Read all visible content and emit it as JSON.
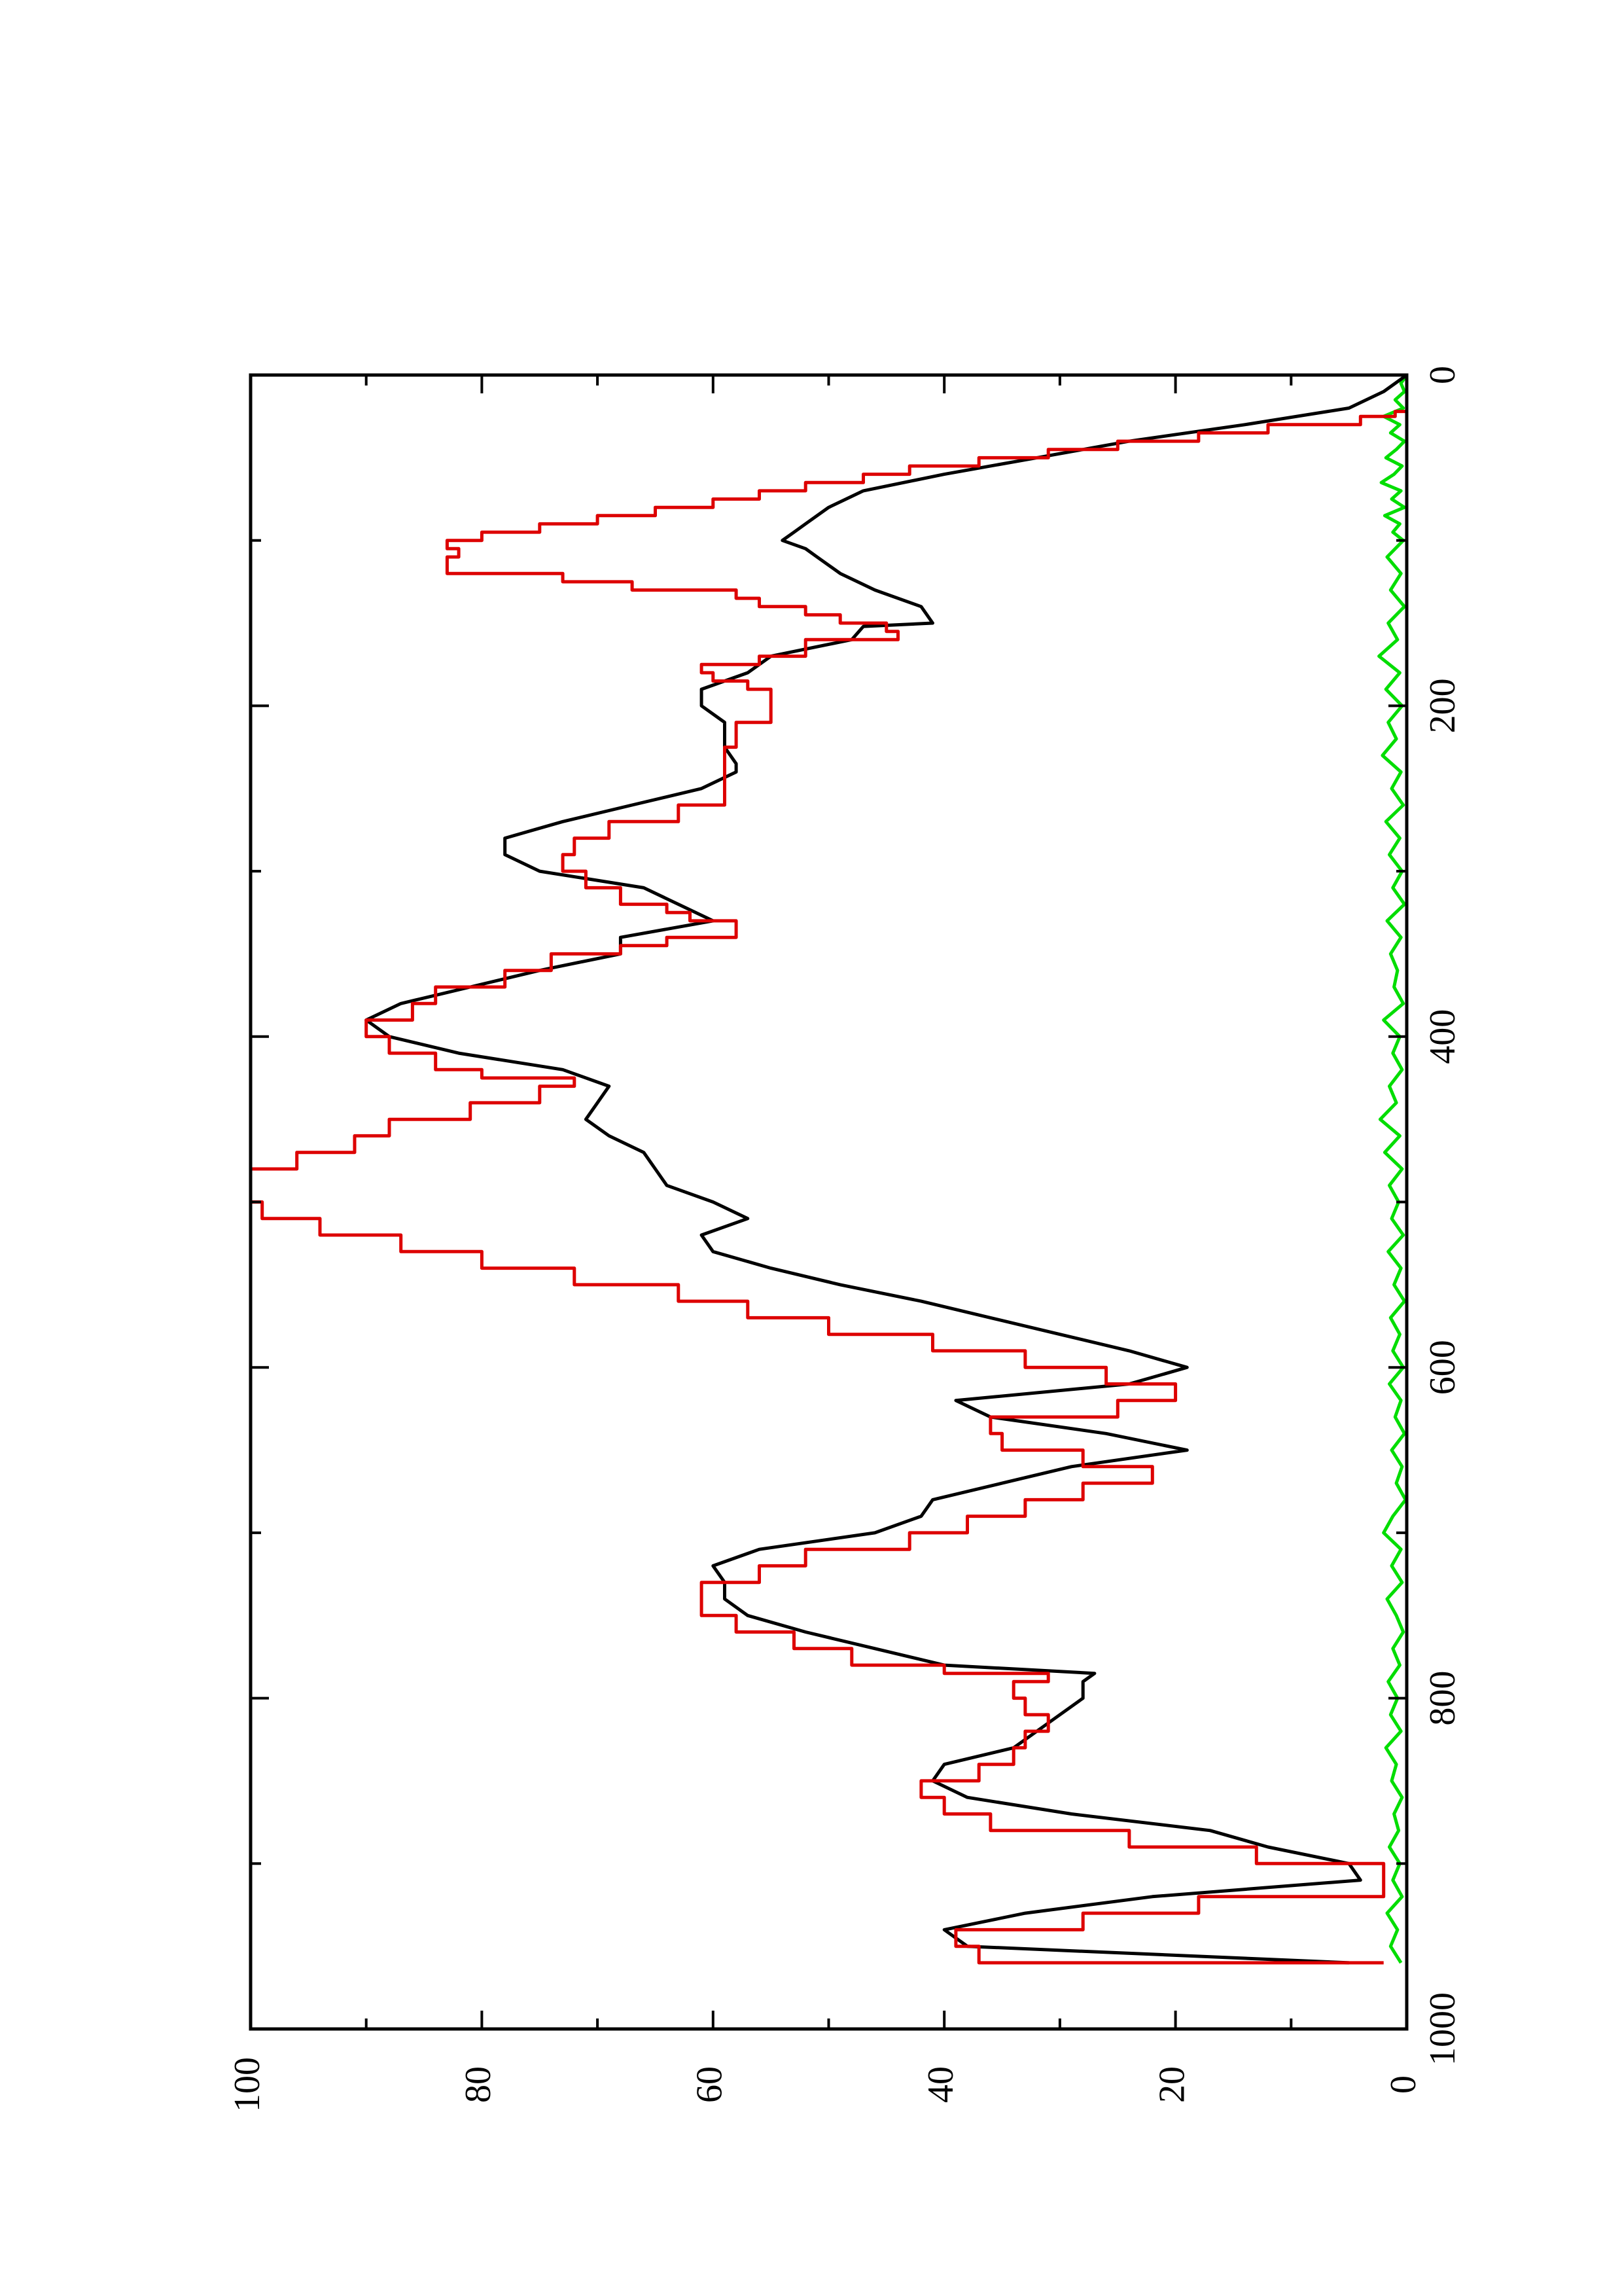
{
  "chart_data": {
    "type": "line",
    "title": "",
    "xlabel": "",
    "ylabel": "",
    "orientation": "rotated-90-ccw",
    "xlim": [
      0,
      1000
    ],
    "ylim": [
      0,
      100
    ],
    "x_ticks": [
      0,
      200,
      400,
      600,
      800,
      1000
    ],
    "y_ticks": [
      0,
      20,
      40,
      60,
      80,
      100
    ],
    "grid": false,
    "legend": "none",
    "colors": {
      "axis": "#000000",
      "black_series": "#000000",
      "red_series": "#dd0000",
      "green_series": "#00dd00"
    },
    "series": [
      {
        "key": "black",
        "color": "#000000",
        "x": [
          0,
          10,
          20,
          30,
          40,
          50,
          60,
          70,
          80,
          90,
          95,
          100,
          105,
          110,
          120,
          130,
          140,
          150,
          152,
          160,
          170,
          180,
          190,
          200,
          210,
          220,
          225,
          235,
          240,
          250,
          260,
          270,
          280,
          290,
          300,
          310,
          320,
          330,
          340,
          350,
          360,
          370,
          380,
          390,
          400,
          410,
          420,
          430,
          440,
          450,
          460,
          470,
          480,
          490,
          500,
          510,
          520,
          530,
          540,
          550,
          560,
          570,
          580,
          590,
          600,
          610,
          620,
          630,
          640,
          650,
          660,
          670,
          680,
          690,
          700,
          710,
          720,
          730,
          740,
          750,
          760,
          770,
          780,
          785,
          790,
          800,
          810,
          820,
          830,
          840,
          850,
          860,
          870,
          880,
          890,
          900,
          910,
          920,
          930,
          940,
          950,
          960
        ],
        "y": [
          0,
          2,
          5,
          14,
          24,
          32,
          40,
          47,
          50,
          52,
          53,
          54,
          52,
          51,
          49,
          46,
          42,
          41,
          47,
          48,
          55,
          57,
          61,
          61,
          59,
          59,
          59,
          58,
          58,
          61,
          67,
          73,
          78,
          78,
          75,
          66,
          63,
          60,
          68,
          68,
          75,
          81,
          87,
          90,
          88,
          82,
          73,
          69,
          70,
          71,
          69,
          66,
          65,
          64,
          60,
          57,
          61,
          60,
          55,
          49,
          42,
          36,
          30,
          24,
          19,
          24,
          39,
          36,
          26,
          19,
          29,
          35,
          41,
          42,
          46,
          56,
          60,
          59,
          59,
          57,
          52,
          46,
          40,
          27,
          28,
          28,
          30,
          32,
          34,
          40,
          41,
          38,
          29,
          17,
          12,
          5,
          4,
          22,
          33,
          40,
          38,
          5
        ]
      },
      {
        "key": "red",
        "color": "#dd0000",
        "step": true,
        "x": [
          0,
          22,
          25,
          30,
          35,
          40,
          45,
          50,
          55,
          60,
          65,
          70,
          75,
          80,
          85,
          90,
          95,
          100,
          105,
          110,
          120,
          125,
          130,
          135,
          140,
          145,
          150,
          155,
          160,
          165,
          170,
          175,
          180,
          185,
          190,
          200,
          210,
          220,
          225,
          230,
          240,
          250,
          260,
          270,
          280,
          290,
          300,
          310,
          320,
          325,
          330,
          340,
          345,
          350,
          360,
          370,
          380,
          390,
          400,
          410,
          420,
          425,
          430,
          440,
          450,
          460,
          470,
          480,
          490,
          500,
          510,
          520,
          530,
          540,
          550,
          560,
          570,
          580,
          590,
          600,
          610,
          620,
          630,
          640,
          650,
          660,
          670,
          680,
          690,
          700,
          710,
          720,
          730,
          740,
          750,
          760,
          770,
          780,
          785,
          790,
          800,
          810,
          820,
          830,
          840,
          850,
          860,
          870,
          880,
          890,
          900,
          910,
          920,
          930,
          940,
          950,
          960
        ],
        "y": [
          0,
          1,
          4,
          12,
          18,
          25,
          31,
          37,
          43,
          47,
          52,
          56,
          60,
          65,
          70,
          75,
          80,
          83,
          82,
          83,
          73,
          67,
          58,
          56,
          52,
          49,
          45,
          44,
          52,
          52,
          56,
          61,
          60,
          57,
          55,
          55,
          58,
          58,
          59,
          59,
          59,
          59,
          63,
          69,
          72,
          73,
          71,
          68,
          64,
          62,
          58,
          64,
          68,
          74,
          78,
          84,
          86,
          90,
          88,
          84,
          80,
          72,
          75,
          81,
          88,
          91,
          96,
          100,
          100,
          99,
          94,
          87,
          80,
          72,
          63,
          57,
          50,
          41,
          33,
          26,
          20,
          25,
          36,
          35,
          28,
          22,
          28,
          33,
          38,
          43,
          52,
          56,
          61,
          61,
          58,
          53,
          48,
          40,
          31,
          34,
          33,
          31,
          33,
          34,
          37,
          42,
          40,
          36,
          24,
          13,
          2,
          2,
          18,
          28,
          39,
          37,
          2
        ]
      },
      {
        "key": "green",
        "color": "#00dd00",
        "x": [
          0,
          5,
          10,
          15,
          20,
          25,
          30,
          35,
          40,
          45,
          50,
          55,
          60,
          65,
          70,
          75,
          80,
          85,
          90,
          95,
          100,
          110,
          120,
          130,
          140,
          150,
          160,
          170,
          180,
          190,
          200,
          210,
          220,
          230,
          240,
          250,
          260,
          270,
          280,
          290,
          300,
          310,
          320,
          330,
          340,
          350,
          360,
          370,
          380,
          390,
          400,
          410,
          420,
          430,
          440,
          450,
          460,
          470,
          480,
          490,
          500,
          510,
          520,
          530,
          540,
          550,
          560,
          570,
          580,
          590,
          600,
          610,
          620,
          630,
          640,
          650,
          660,
          670,
          680,
          690,
          700,
          710,
          720,
          730,
          740,
          750,
          760,
          770,
          780,
          790,
          800,
          810,
          820,
          830,
          840,
          850,
          860,
          870,
          880,
          890,
          900,
          910,
          920,
          930,
          940,
          950,
          960
        ],
        "y": [
          0,
          0.5,
          0.2,
          1,
          0.3,
          2,
          0.6,
          1.4,
          0.2,
          0.9,
          1.8,
          0.4,
          1.1,
          2.2,
          0.5,
          1.3,
          0.2,
          1.9,
          0.6,
          1.2,
          0.3,
          1.7,
          0.5,
          1.4,
          0.2,
          1.6,
          0.8,
          2.4,
          0.6,
          1.8,
          0.4,
          1.6,
          0.9,
          2.1,
          0.5,
          1.3,
          0.3,
          1.8,
          0.6,
          1.5,
          0.4,
          1.2,
          0.2,
          1.7,
          0.5,
          1.4,
          0.8,
          1.1,
          0.3,
          2.0,
          0.6,
          1.2,
          0.4,
          1.5,
          0.9,
          2.3,
          0.6,
          1.9,
          0.4,
          1.5,
          0.7,
          1.3,
          0.3,
          1.6,
          0.5,
          1.1,
          0.2,
          1.4,
          0.6,
          1.2,
          0.3,
          1.5,
          0.5,
          1.0,
          0.2,
          1.3,
          0.4,
          0.9,
          0.1,
          1.2,
          2.0,
          0.5,
          1.3,
          0.4,
          1.7,
          0.9,
          0.3,
          1.2,
          0.6,
          1.6,
          0.8,
          1.4,
          0.5,
          1.8,
          0.9,
          1.3,
          0.4,
          1.1,
          0.7,
          1.5,
          0.6,
          1.2,
          0.4,
          1.7,
          0.8,
          1.4,
          0.5
        ]
      }
    ]
  }
}
